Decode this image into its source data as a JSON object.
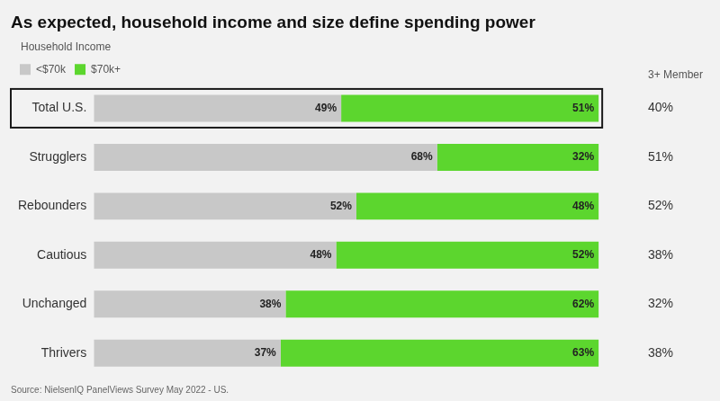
{
  "chart_data": {
    "type": "bar",
    "orientation": "horizontal",
    "stacked": true,
    "title": "As expected, household income and size define spending power",
    "categories": [
      "Total U.S.",
      "Strugglers",
      "Rebounders",
      "Cautious",
      "Unchanged",
      "Thrivers"
    ],
    "series": [
      {
        "name": "<$70k",
        "color": "#c8c8c8",
        "values": [
          49,
          68,
          52,
          48,
          38,
          37
        ],
        "value_labels": [
          "49%",
          "68%",
          "52%",
          "48%",
          "38%",
          "37%"
        ]
      },
      {
        "name": "$70k+",
        "color": "#5cd62e",
        "values": [
          51,
          32,
          48,
          52,
          62,
          63
        ],
        "value_labels": [
          "51%",
          "32%",
          "48%",
          "52%",
          "62%",
          "63%"
        ]
      }
    ],
    "xlim": [
      0,
      108
    ],
    "tick_labels": "y",
    "grid": false,
    "legend": "upper left",
    "legend_title": "Household Income",
    "data_labels": true,
    "side_column": {
      "name": "3+ Member",
      "values": [
        40,
        51,
        52,
        38,
        32,
        38
      ],
      "value_labels": [
        "40%",
        "51%",
        "52%",
        "38%",
        "32%",
        "38%"
      ]
    },
    "annotations": [
      "Source: NielsenIQ PanelViews Survey May 2022 - US."
    ]
  }
}
